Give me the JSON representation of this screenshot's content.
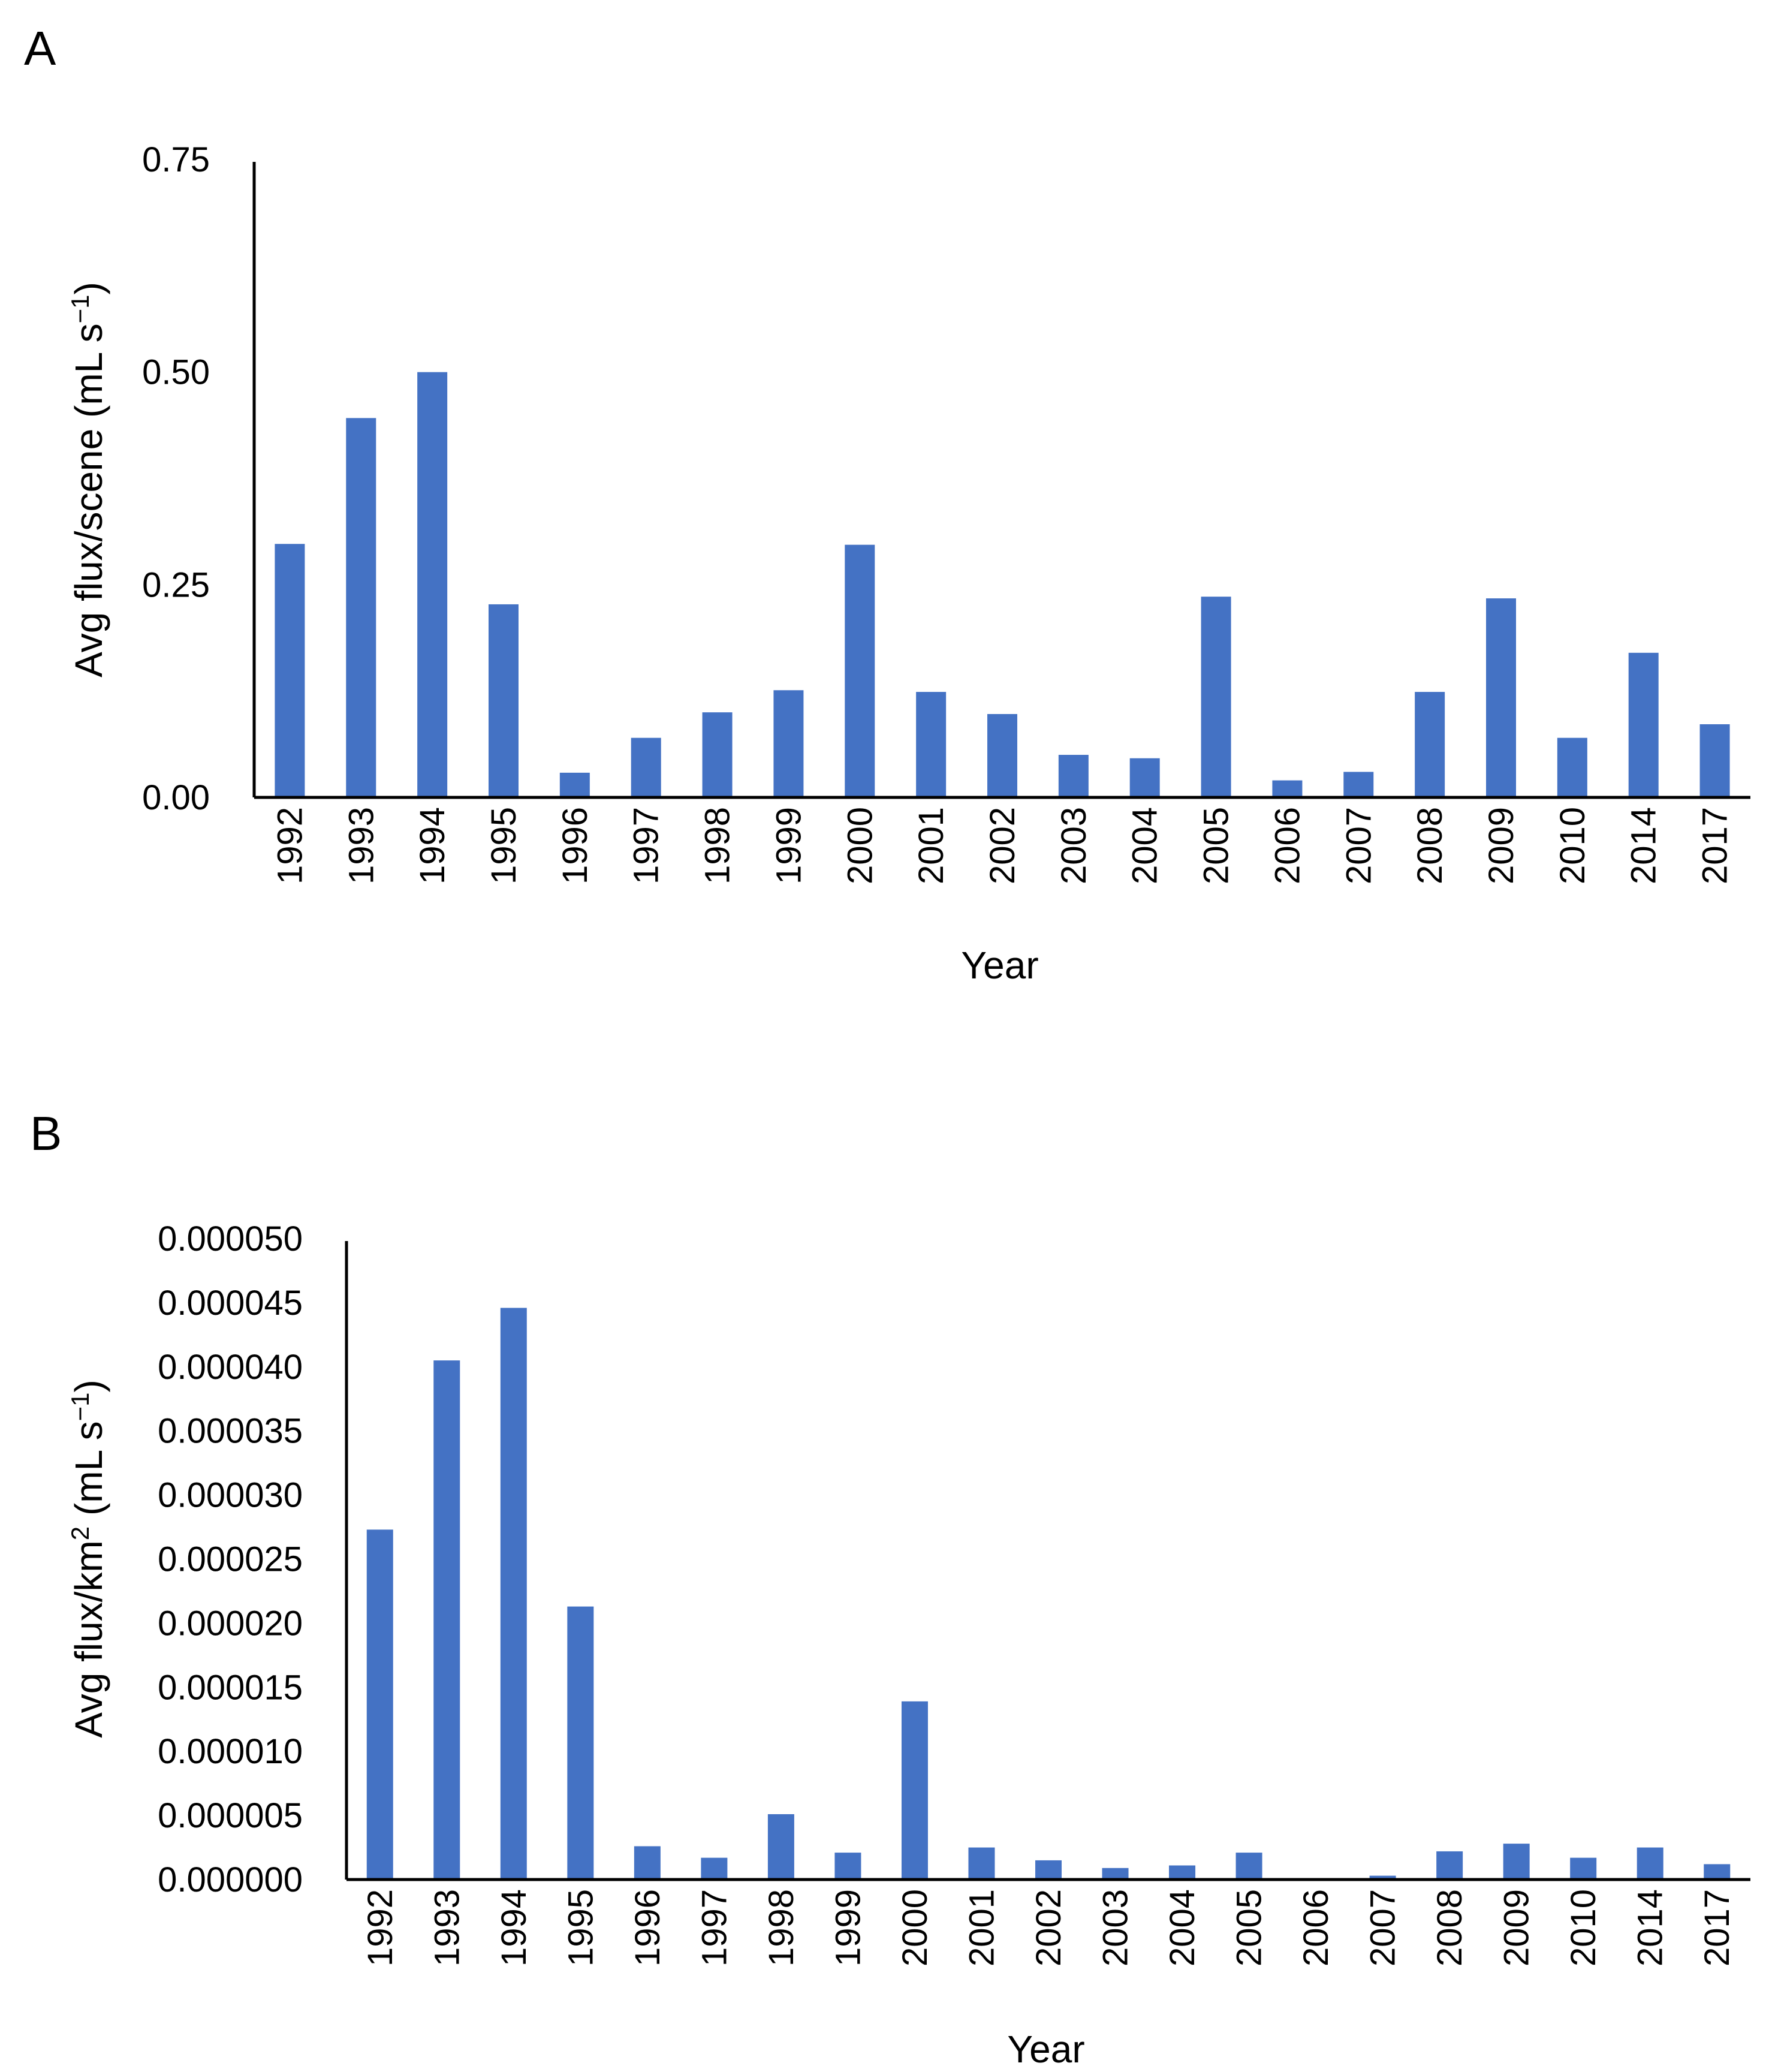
{
  "chart_data": [
    {
      "type": "bar",
      "panel_label": "A",
      "categories": [
        "1992",
        "1993",
        "1994",
        "1995",
        "1996",
        "1997",
        "1998",
        "1999",
        "2000",
        "2001",
        "2002",
        "2003",
        "2004",
        "2005",
        "2006",
        "2007",
        "2008",
        "2009",
        "2010",
        "2014",
        "2017"
      ],
      "values": [
        0.298,
        0.446,
        0.5,
        0.227,
        0.029,
        0.07,
        0.1,
        0.126,
        0.297,
        0.124,
        0.098,
        0.05,
        0.046,
        0.236,
        0.02,
        0.03,
        0.124,
        0.234,
        0.07,
        0.17,
        0.086
      ],
      "ylim": [
        0,
        0.75
      ],
      "yticks": [
        "0.00",
        "0.25",
        "0.50",
        "0.75"
      ],
      "ytick_values": [
        0,
        0.25,
        0.5,
        0.75
      ],
      "xlabel": "Year",
      "ylabel_main": "Avg flux/scene (mL s",
      "ylabel_sup": "−1",
      "ylabel_end": ")",
      "bar_color": "#4472c4"
    },
    {
      "type": "bar",
      "panel_label": "B",
      "categories": [
        "1992",
        "1993",
        "1994",
        "1995",
        "1996",
        "1997",
        "1998",
        "1999",
        "2000",
        "2001",
        "2002",
        "2003",
        "2004",
        "2005",
        "2006",
        "2007",
        "2008",
        "2009",
        "2010",
        "2014",
        "2017"
      ],
      "values": [
        2.73e-05,
        4.05e-05,
        4.46e-05,
        2.13e-05,
        2.6e-06,
        1.7e-06,
        5.1e-06,
        2.1e-06,
        1.39e-05,
        2.5e-06,
        1.5e-06,
        9e-07,
        1.1e-06,
        2.1e-06,
        0.0,
        3e-07,
        2.2e-06,
        2.8e-06,
        1.7e-06,
        2.5e-06,
        1.2e-06
      ],
      "ylim": [
        0,
        5e-05
      ],
      "yticks": [
        "0.000000",
        "0.000005",
        "0.000010",
        "0.000015",
        "0.000020",
        "0.000025",
        "0.000030",
        "0.000035",
        "0.000040",
        "0.000045",
        "0.000050"
      ],
      "ytick_values": [
        0,
        5e-06,
        1e-05,
        1.5e-05,
        2e-05,
        2.5e-05,
        3e-05,
        3.5e-05,
        4e-05,
        4.5e-05,
        5e-05
      ],
      "xlabel": "Year",
      "ylabel_main": "Avg flux/km",
      "ylabel_sup": "2",
      "ylabel_mid": " (mL s",
      "ylabel_sup2": "−1",
      "ylabel_end": ")",
      "bar_color": "#4472c4"
    }
  ]
}
